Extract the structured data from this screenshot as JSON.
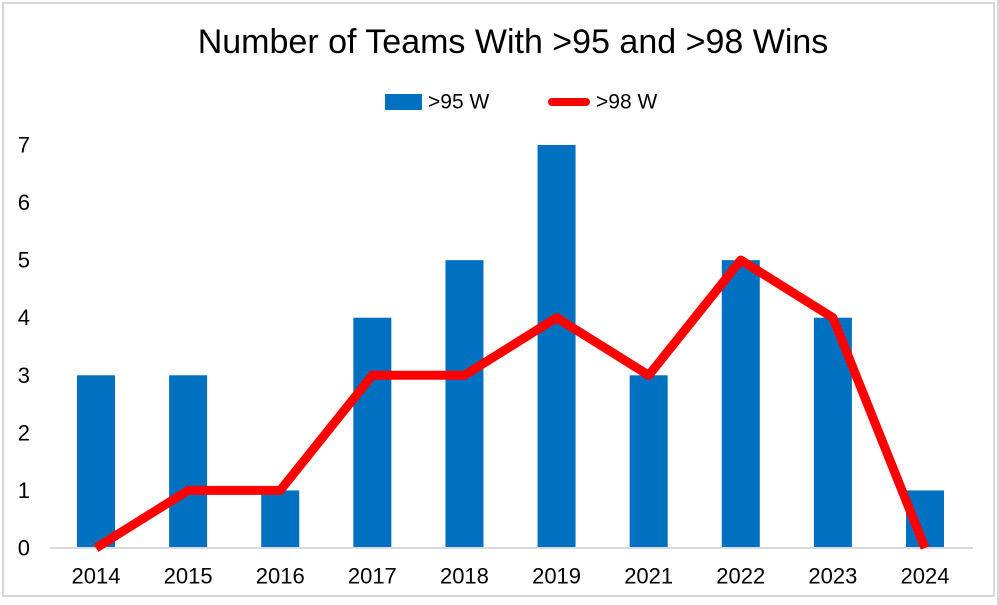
{
  "frame": {
    "background": "#FFFFFF",
    "border_color": "#D6D6D6",
    "right_edge_color": "#D6D6D6"
  },
  "chart_data": {
    "type": "combo",
    "title": "Number of Teams With >95 and >98 Wins",
    "categories": [
      "2014",
      "2015",
      "2016",
      "2017",
      "2018",
      "2019",
      "2021",
      "2022",
      "2023",
      "2024"
    ],
    "series": [
      {
        "name": ">95 W",
        "type": "bar",
        "color": "#0070C0",
        "values": [
          3,
          3,
          1,
          4,
          5,
          7,
          3,
          5,
          4,
          1
        ]
      },
      {
        "name": ">98 W",
        "type": "line",
        "color": "#FF0000",
        "values": [
          0,
          1,
          1,
          3,
          3,
          4,
          3,
          5,
          4,
          0
        ]
      }
    ],
    "ylim": [
      0,
      7
    ],
    "yticks": [
      0,
      1,
      2,
      3,
      4,
      5,
      6,
      7
    ],
    "grid": false,
    "legend_position": "top-center",
    "axis_line_color": "#D9D9D9",
    "text_color": "#000000"
  }
}
